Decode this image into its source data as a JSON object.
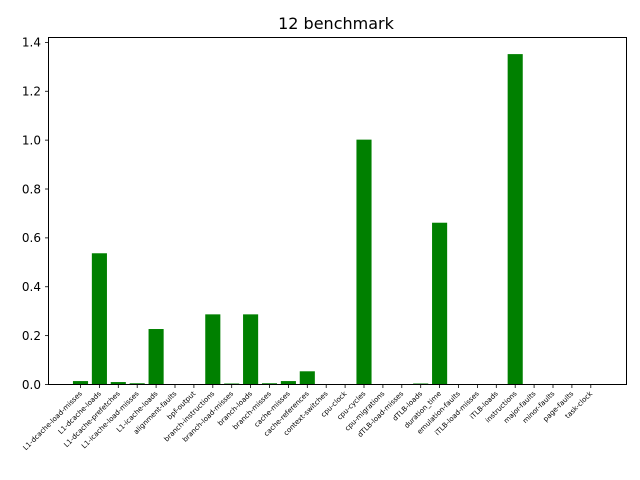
{
  "chart_data": {
    "type": "bar",
    "title": "12 benchmark",
    "xlabel": "",
    "ylabel": "",
    "ylim": [
      0,
      1.42
    ],
    "yticks": [
      0.0,
      0.2,
      0.4,
      0.6,
      0.8,
      1.0,
      1.2,
      1.4
    ],
    "ytick_labels": [
      "0.0",
      "0.2",
      "0.4",
      "0.6",
      "0.8",
      "1.0",
      "1.2",
      "1.4"
    ],
    "grid": false,
    "bar_color": "#008000",
    "categories": [
      "L1-dcache-load-misses",
      "L1-dcache-loads",
      "L1-dcache-prefetches",
      "L1-icache-load-misses",
      "L1-icache-loads",
      "alignment-faults",
      "bpf-output",
      "branch-instructions",
      "branch-load-misses",
      "branch-loads",
      "branch-misses",
      "cache-misses",
      "cache-references",
      "context-switches",
      "cpu-clock",
      "cpu-cycles",
      "cpu-migrations",
      "dTLB-load-misses",
      "dTLB-loads",
      "duration_time",
      "emulation-faults",
      "iTLB-load-misses",
      "iTLB-loads",
      "instructions",
      "major-faults",
      "minor-faults",
      "page-faults",
      "task-clock"
    ],
    "values": [
      0.012,
      0.535,
      0.008,
      0.003,
      0.225,
      0.0,
      0.0,
      0.285,
      0.002,
      0.285,
      0.003,
      0.012,
      0.052,
      0.0,
      0.0,
      1.0,
      0.0,
      0.0,
      0.002,
      0.66,
      0.0,
      0.0,
      0.0,
      1.35,
      0.0,
      0.0,
      0.0,
      0.0
    ]
  }
}
